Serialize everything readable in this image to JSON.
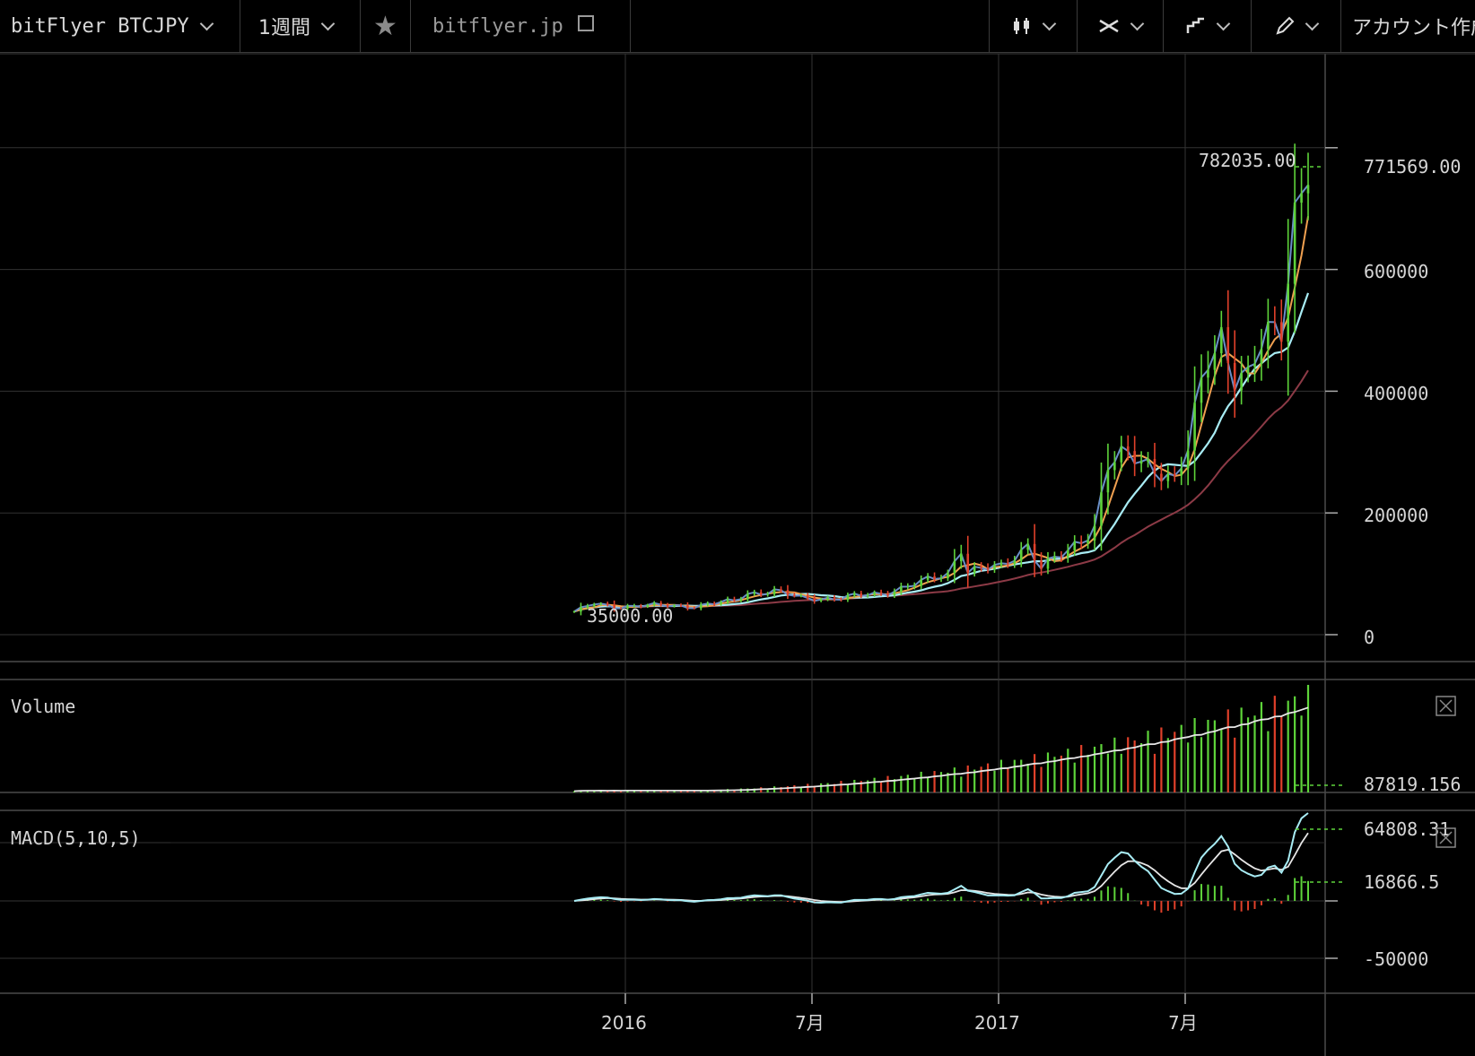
{
  "toolbar": {
    "symbol": "bitFlyer BTCJPY",
    "interval": "1週間",
    "site": "bitflyer.jp",
    "account_button": "アカウント作成"
  },
  "colors": {
    "up": "#5ed43a",
    "down": "#e0402a",
    "ma_fast": "#f0a050",
    "ma_mid": "#a8ecf4",
    "ma_slow": "#8c3a46",
    "price_line": "#6a8ec8",
    "grid": "#333333"
  },
  "main_pane": {
    "y_ticks": [
      "600000",
      "400000",
      "200000",
      "0"
    ],
    "last_price": "771569.00",
    "high_label": "782035.00",
    "low_label": "35000.00"
  },
  "volume_pane": {
    "title": "Volume",
    "last_value": "87819.156"
  },
  "macd_pane": {
    "title": "MACD(5,10,5)",
    "macd_value": "64808.31",
    "signal_value": "16866.5",
    "tick": "-50000"
  },
  "x_axis": {
    "labels": [
      "2016",
      "7月",
      "2017",
      "7月"
    ]
  },
  "chart_data": {
    "type": "candlestick",
    "interval": "1 week",
    "x": [
      "2015-11",
      "2016-01",
      "2016-04",
      "2016-06",
      "2016-07",
      "2016-10",
      "2016-12",
      "2017-01",
      "2017-03",
      "2017-05",
      "2017-06",
      "2017-07",
      "2017-08",
      "2017-09",
      "2017-10"
    ],
    "close": [
      38000,
      48000,
      47000,
      58000,
      70000,
      65000,
      100000,
      110000,
      140000,
      250000,
      300000,
      280000,
      480000,
      440000,
      771569
    ],
    "high": 782035,
    "low": 35000,
    "ylim": [
      0,
      850000
    ]
  }
}
